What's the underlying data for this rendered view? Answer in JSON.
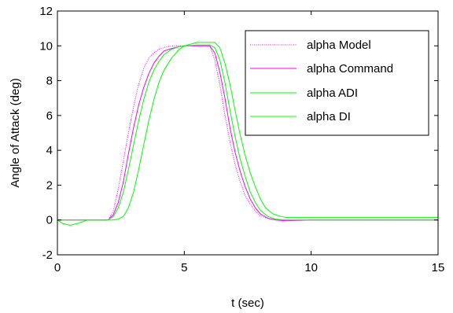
{
  "chart_data": {
    "type": "line",
    "title": "",
    "xlabel": "t (sec)",
    "ylabel": "Angle of Attack (deg)",
    "xlim": [
      0,
      15
    ],
    "ylim": [
      -2,
      12
    ],
    "x_ticks": [
      0,
      5,
      10,
      15
    ],
    "y_ticks": [
      -2,
      0,
      2,
      4,
      6,
      8,
      10,
      12
    ],
    "grid": false,
    "legend_position": "top-right",
    "series": [
      {
        "name": "alpha Model",
        "color": "#ff00ff",
        "style": "dotted",
        "x": [
          0,
          2.0,
          2.2,
          2.4,
          2.6,
          2.8,
          3.0,
          3.2,
          3.4,
          3.6,
          3.8,
          4.0,
          4.3,
          4.6,
          5.0,
          5.5,
          6.0,
          6.2,
          6.4,
          6.6,
          6.8,
          7.0,
          7.2,
          7.4,
          7.6,
          7.8,
          8.0,
          8.3,
          8.6,
          9.0,
          10.0,
          12.0,
          15.0
        ],
        "y": [
          0,
          0,
          0.5,
          1.8,
          3.4,
          5.0,
          6.5,
          7.8,
          8.7,
          9.3,
          9.6,
          9.8,
          9.95,
          10.0,
          10.0,
          10.0,
          10.0,
          9.2,
          7.8,
          6.0,
          4.5,
          3.2,
          2.2,
          1.4,
          0.9,
          0.5,
          0.25,
          0.08,
          0.02,
          0,
          0,
          0,
          0
        ]
      },
      {
        "name": "alpha Command",
        "color": "#ff00ff",
        "style": "solid",
        "x": [
          0,
          2.0,
          2.2,
          2.4,
          2.6,
          2.8,
          3.0,
          3.2,
          3.4,
          3.6,
          3.8,
          4.0,
          4.2,
          4.5,
          4.8,
          5.0,
          5.5,
          6.0,
          6.2,
          6.4,
          6.6,
          6.8,
          7.0,
          7.2,
          7.4,
          7.6,
          7.8,
          8.0,
          8.3,
          8.6,
          9.0,
          10.0,
          12.0,
          15.0
        ],
        "y": [
          0,
          0,
          0.3,
          1.0,
          2.2,
          3.8,
          5.3,
          6.6,
          7.6,
          8.4,
          9.0,
          9.4,
          9.7,
          9.85,
          9.95,
          10.0,
          10.0,
          10.0,
          9.6,
          8.5,
          7.0,
          5.3,
          3.9,
          2.8,
          1.9,
          1.2,
          0.7,
          0.35,
          0.1,
          0.0,
          -0.05,
          0,
          0,
          0
        ]
      },
      {
        "name": "alpha ADI",
        "color": "#00ff00",
        "style": "solid",
        "x": [
          0,
          2.0,
          2.2,
          2.4,
          2.6,
          2.8,
          3.0,
          3.2,
          3.4,
          3.6,
          3.8,
          4.0,
          4.2,
          4.5,
          4.8,
          5.0,
          5.5,
          6.0,
          6.2,
          6.4,
          6.6,
          6.8,
          7.0,
          7.2,
          7.4,
          7.6,
          7.8,
          8.0,
          8.3,
          8.6,
          9.0,
          10.0,
          12.0,
          15.0
        ],
        "y": [
          0,
          0,
          0.2,
          0.7,
          1.6,
          2.9,
          4.3,
          5.7,
          6.9,
          7.9,
          8.6,
          9.1,
          9.5,
          9.8,
          9.95,
          10.0,
          10.05,
          10.05,
          9.9,
          9.2,
          7.9,
          6.3,
          4.8,
          3.5,
          2.5,
          1.6,
          1.0,
          0.55,
          0.2,
          0.05,
          0.0,
          0.0,
          0.0,
          0.0
        ]
      },
      {
        "name": "alpha DI",
        "color": "#00ff00",
        "style": "solid",
        "x": [
          0,
          0.2,
          0.5,
          0.8,
          1.0,
          1.2,
          1.5,
          2.0,
          2.2,
          2.4,
          2.6,
          2.8,
          3.0,
          3.2,
          3.4,
          3.6,
          3.8,
          4.0,
          4.2,
          4.5,
          4.8,
          5.0,
          5.5,
          6.0,
          6.2,
          6.4,
          6.6,
          6.8,
          7.0,
          7.2,
          7.4,
          7.6,
          7.8,
          8.0,
          8.2,
          8.5,
          8.8,
          9.0,
          10.0,
          12.0,
          15.0
        ],
        "y": [
          0,
          -0.2,
          -0.3,
          -0.2,
          -0.1,
          0.0,
          0.0,
          0.0,
          0.0,
          0.05,
          0.2,
          0.7,
          1.6,
          2.9,
          4.3,
          5.7,
          6.9,
          7.9,
          8.6,
          9.3,
          9.8,
          10.0,
          10.2,
          10.2,
          10.2,
          9.9,
          9.0,
          7.8,
          6.3,
          4.9,
          3.7,
          2.7,
          1.9,
          1.2,
          0.7,
          0.35,
          0.2,
          0.15,
          0.15,
          0.15,
          0.15
        ]
      }
    ]
  }
}
